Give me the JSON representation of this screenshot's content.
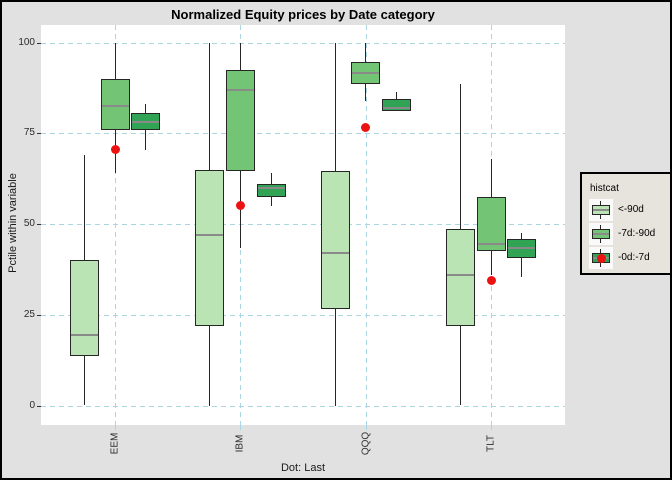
{
  "window": {
    "background": "#E1E1E1",
    "border_color": "#000000"
  },
  "chart_data": {
    "type": "boxplot",
    "title": "Normalized Equity prices by Date category",
    "xlabel": "Dot: Last",
    "ylabel": "Pctile within variable",
    "ylim": [
      0,
      100
    ],
    "yticks": [
      0,
      25,
      50,
      75,
      100
    ],
    "grid": {
      "style": "dashed",
      "color": "#AAD5E3",
      "horizontal_at": [
        0,
        25,
        50,
        75,
        100
      ],
      "vertical_at_category_centers": true
    },
    "panel_background": "#FFFFFF",
    "categories": [
      "EEM",
      "IBM",
      "QQQ",
      "TLT"
    ],
    "legend": {
      "title": "histcat",
      "position": "right",
      "background": "#E7E3DD",
      "entries": [
        "<-90d",
        "-7d:-90d",
        "-0d:-7d"
      ]
    },
    "series": [
      {
        "name": "<-90d",
        "fill": "#BAE4B3",
        "boxes": [
          {
            "category": "EEM",
            "whisker_lo": 0,
            "q1": 13.5,
            "median": 19.5,
            "q3": 40,
            "whisker_hi": 69
          },
          {
            "category": "IBM",
            "whisker_lo": 0,
            "q1": 22,
            "median": 47,
            "q3": 65,
            "whisker_hi": 100
          },
          {
            "category": "QQQ",
            "whisker_lo": 0,
            "q1": 26.5,
            "median": 42,
            "q3": 64.5,
            "whisker_hi": 100
          },
          {
            "category": "TLT",
            "whisker_lo": 0,
            "q1": 22,
            "median": 36,
            "q3": 48.5,
            "whisker_hi": 88.5
          }
        ]
      },
      {
        "name": "-7d:-90d",
        "fill": "#74C476",
        "boxes": [
          {
            "category": "EEM",
            "whisker_lo": 64,
            "q1": 76,
            "median": 82.5,
            "q3": 90,
            "whisker_hi": 100
          },
          {
            "category": "IBM",
            "whisker_lo": 43.5,
            "q1": 64.5,
            "median": 87,
            "q3": 92.5,
            "whisker_hi": 100
          },
          {
            "category": "QQQ",
            "whisker_lo": 84,
            "q1": 88.5,
            "median": 91.5,
            "q3": 94.5,
            "whisker_hi": 100
          },
          {
            "category": "TLT",
            "whisker_lo": 36,
            "q1": 42.5,
            "median": 44.5,
            "q3": 57.5,
            "whisker_hi": 68
          }
        ]
      },
      {
        "name": "-0d:-7d",
        "fill": "#31A354",
        "boxes": [
          {
            "category": "EEM",
            "whisker_lo": 70.5,
            "q1": 76,
            "median": 78,
            "q3": 80.5,
            "whisker_hi": 83
          },
          {
            "category": "IBM",
            "whisker_lo": 55,
            "q1": 57.5,
            "median": 60,
            "q3": 61,
            "whisker_hi": 64
          },
          {
            "category": "QQQ",
            "whisker_lo": 81,
            "q1": 81,
            "median": 82,
            "q3": 84.5,
            "whisker_hi": 86.5
          },
          {
            "category": "TLT",
            "whisker_lo": 35.5,
            "q1": 40.5,
            "median": 43.5,
            "q3": 46,
            "whisker_hi": 47.5
          }
        ]
      }
    ],
    "dots": {
      "label": "Last",
      "color": "#EC1212",
      "key_series": "-0d:-7d",
      "values": [
        70.5,
        55,
        76.5,
        34.5
      ]
    },
    "style": {
      "box_border": "#262626",
      "median_color": "#8A8A8A",
      "whisker_color": "#262626",
      "tick_label_color": "#2B2B2B"
    }
  }
}
